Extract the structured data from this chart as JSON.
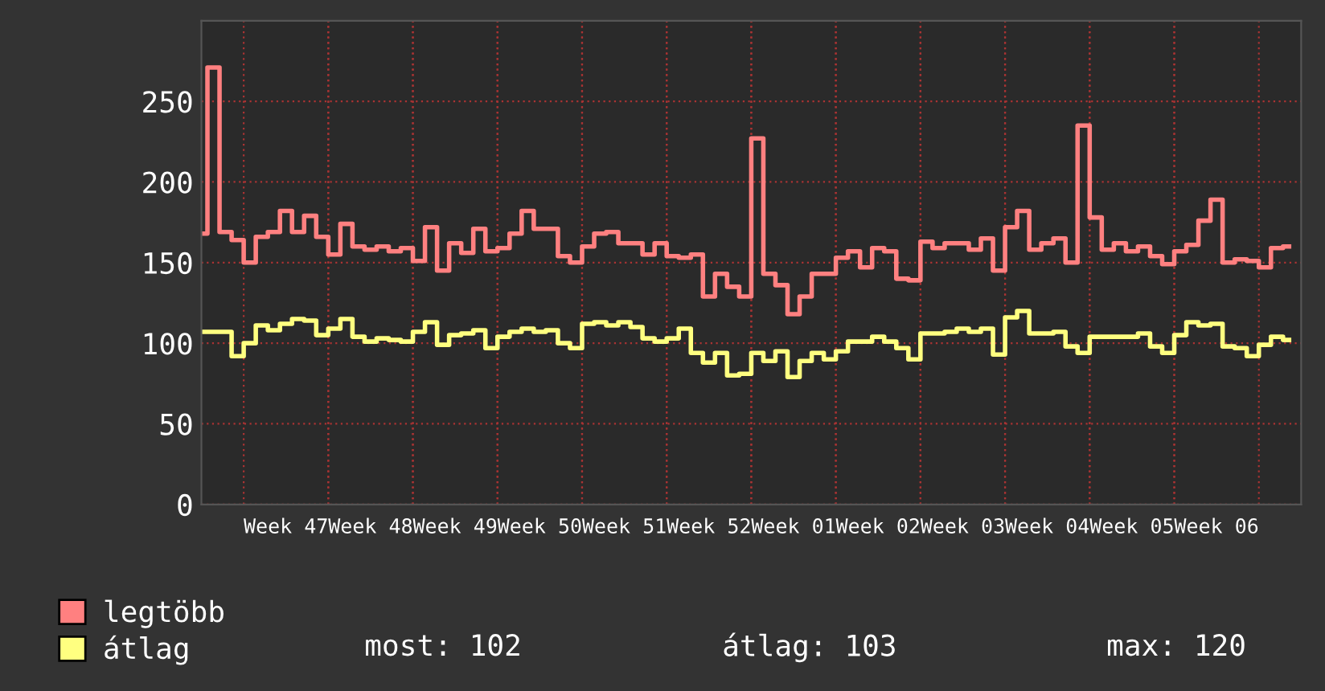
{
  "chart_data": {
    "type": "step",
    "categories": [
      null,
      null,
      null,
      null,
      null,
      null,
      null,
      "Week 47",
      null,
      null,
      null,
      null,
      null,
      null,
      "Week 48",
      null,
      null,
      null,
      null,
      null,
      null,
      "Week 49",
      null,
      null,
      null,
      null,
      null,
      null,
      "Week 50",
      null,
      null,
      null,
      null,
      null,
      null,
      "Week 51",
      null,
      null,
      null,
      null,
      null,
      null,
      "Week 52",
      null,
      null,
      null,
      null,
      null,
      null,
      "Week 01",
      null,
      null,
      null,
      null,
      null,
      null,
      "Week 02",
      null,
      null,
      null,
      null,
      null,
      null,
      "Week 03",
      null,
      null,
      null,
      null,
      null,
      null,
      "Week 04",
      null,
      null,
      null,
      null,
      null,
      null,
      "Week 05",
      null,
      null,
      null,
      null,
      null,
      null,
      "Week 06",
      null,
      null,
      null,
      null,
      null,
      null
    ],
    "series": [
      {
        "name": "legtöbb",
        "color": "#ff8080",
        "values": [
          168,
          271,
          169,
          164,
          150,
          166,
          169,
          182,
          169,
          179,
          166,
          155,
          174,
          160,
          158,
          160,
          157,
          159,
          151,
          172,
          145,
          162,
          156,
          171,
          157,
          159,
          168,
          182,
          171,
          171,
          154,
          150,
          160,
          168,
          169,
          162,
          162,
          155,
          162,
          154,
          153,
          155,
          129,
          143,
          135,
          129,
          227,
          143,
          136,
          118,
          129,
          143,
          143,
          153,
          157,
          147,
          159,
          157,
          140,
          139,
          163,
          159,
          162,
          162,
          158,
          165,
          145,
          172,
          182,
          158,
          162,
          165,
          150,
          235,
          178,
          158,
          162,
          157,
          160,
          154,
          149,
          157,
          161,
          176,
          189,
          150,
          152,
          151,
          147,
          159,
          160
        ]
      },
      {
        "name": "átlag",
        "color": "#ffff80",
        "values": [
          107,
          107,
          107,
          92,
          100,
          111,
          108,
          112,
          115,
          114,
          105,
          109,
          115,
          104,
          101,
          103,
          102,
          101,
          107,
          113,
          99,
          105,
          106,
          108,
          97,
          104,
          107,
          109,
          107,
          108,
          100,
          97,
          112,
          113,
          111,
          113,
          110,
          103,
          101,
          103,
          109,
          94,
          88,
          94,
          80,
          81,
          94,
          89,
          95,
          79,
          89,
          94,
          90,
          95,
          101,
          101,
          104,
          101,
          97,
          90,
          106,
          106,
          107,
          109,
          107,
          109,
          93,
          116,
          120,
          106,
          106,
          107,
          98,
          94,
          104,
          104,
          104,
          104,
          106,
          98,
          94,
          105,
          113,
          111,
          112,
          98,
          97,
          92,
          99,
          104,
          102
        ]
      }
    ],
    "ylim": [
      0,
      300
    ],
    "yticks": [
      0,
      50,
      100,
      150,
      200,
      250
    ],
    "grid": true,
    "legend": "bottom",
    "annotations": [
      "most: 102",
      "átlag: 103",
      "max: 120"
    ]
  }
}
